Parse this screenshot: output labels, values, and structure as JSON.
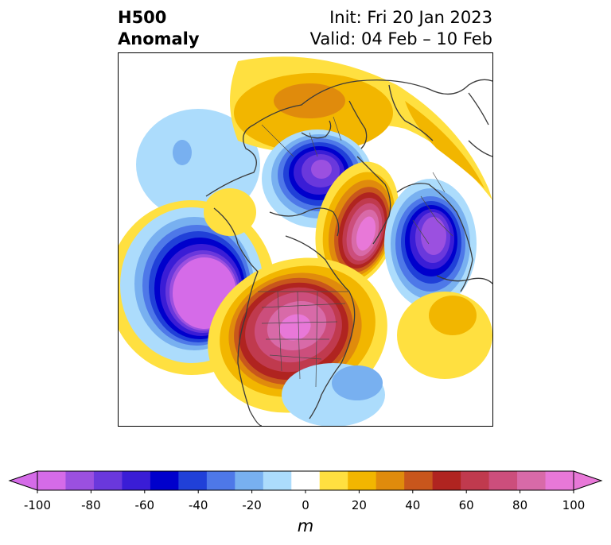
{
  "header": {
    "left_line1": "H500",
    "left_line2": "Anomaly",
    "right_line1": "Init: Fri 20 Jan 2023",
    "right_line2": "Valid: 04 Feb – 10 Feb"
  },
  "colorbar": {
    "unit": "m",
    "min": -100,
    "max": 100,
    "step": 10,
    "extend": "both",
    "tick_labels": [
      "-100",
      "-80",
      "-60",
      "-40",
      "-20",
      "0",
      "20",
      "40",
      "60",
      "80",
      "100"
    ],
    "colors": [
      "#d56be8",
      "#9b50e0",
      "#6a38dc",
      "#3a1dd6",
      "#0000cc",
      "#2040d8",
      "#4e78e8",
      "#78b0f0",
      "#acdcfc",
      "#ffffff",
      "#ffe040",
      "#f2b600",
      "#e08b0c",
      "#c8561c",
      "#b02420",
      "#c03a4e",
      "#cc4e7c",
      "#d86aa8",
      "#e878d8"
    ]
  }
}
